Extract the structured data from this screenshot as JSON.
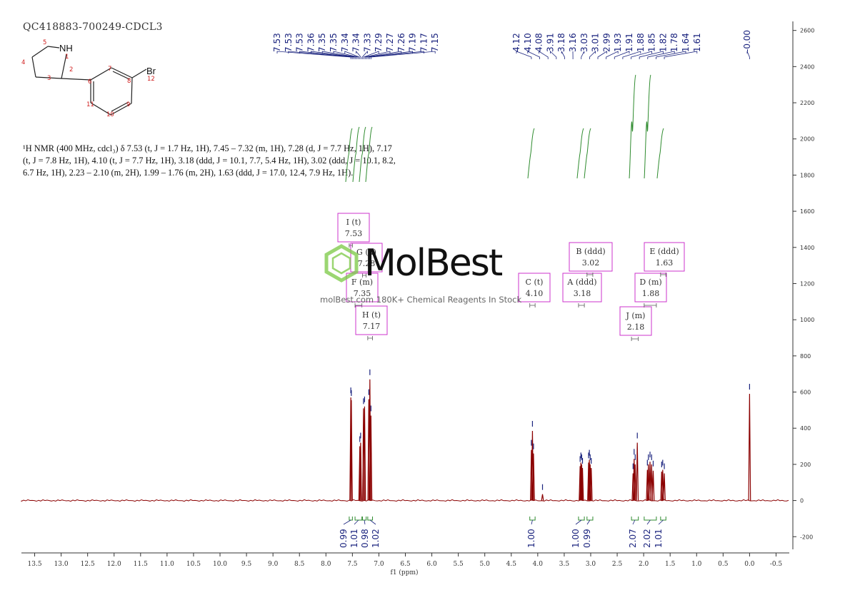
{
  "sample_id": "QC418883-700249-CDCL3",
  "structure": {
    "atoms": [
      {
        "id": "1",
        "label": "1"
      },
      {
        "id": "2",
        "label": "2"
      },
      {
        "id": "3",
        "label": "3"
      },
      {
        "id": "4",
        "label": "4"
      },
      {
        "id": "5",
        "label": "5"
      },
      {
        "id": "6",
        "label": "6"
      },
      {
        "id": "7",
        "label": "7"
      },
      {
        "id": "8",
        "label": "8"
      },
      {
        "id": "9",
        "label": "9"
      },
      {
        "id": "10",
        "label": "10"
      },
      {
        "id": "11",
        "label": "11"
      },
      {
        "id": "12",
        "label": "12"
      }
    ],
    "nh_label": "NH",
    "br_label": "Br"
  },
  "nmr_description": {
    "line1": "¹H NMR (400 MHz, cdcl₃) δ 7.53 (t, J = 1.7 Hz, 1H), 7.45 – 7.32 (m, 1H), 7.28 (d, J = 7.7 Hz, 1H), 7.17",
    "line2": "(t, J = 7.8 Hz, 1H), 4.10 (t, J = 7.7 Hz, 1H), 3.18 (ddd, J = 10.1, 7.7, 5.4 Hz, 1H), 3.02 (ddd, J = 10.1, 8.2,",
    "line3": "6.7 Hz, 1H), 2.23 – 2.10 (m, 2H), 1.99 – 1.76 (m, 2H), 1.63 (ddd, J = 17.0, 12.4, 7.9 Hz, 1H)."
  },
  "watermark": {
    "logo_text": "MolBest",
    "tagline": "molBest.com 180K+ Chemical Reagents In Stock"
  },
  "chart_data": {
    "type": "line",
    "xlabel": "f1 (ppm)",
    "xlim": [
      13.75,
      -0.75
    ],
    "x_reversed": true,
    "ylim": [
      -270,
      2650
    ],
    "x_ticks": [
      "13.5",
      "13.0",
      "12.5",
      "12.0",
      "11.5",
      "11.0",
      "10.5",
      "10.0",
      "9.5",
      "9.0",
      "8.5",
      "8.0",
      "7.5",
      "7.0",
      "6.5",
      "6.0",
      "5.5",
      "5.0",
      "4.5",
      "4.0",
      "3.5",
      "3.0",
      "2.5",
      "2.0",
      "1.5",
      "1.0",
      "0.5",
      "0.0",
      "-0.5"
    ],
    "y_ticks": [
      "-200",
      "0",
      "200",
      "400",
      "600",
      "800",
      "1000",
      "1200",
      "1400",
      "1600",
      "1800",
      "2000",
      "2200",
      "2400",
      "2600"
    ],
    "colors": {
      "spectrum": "#8b0000",
      "peak_label": "#1a237e",
      "integral": "#2e8b2e",
      "multiplet": "#cc33cc",
      "axis": "#333333"
    },
    "spectrum_peaks": [
      {
        "ppm": 7.53,
        "height": 570
      },
      {
        "ppm": 7.52,
        "height": 555
      },
      {
        "ppm": 7.36,
        "height": 300
      },
      {
        "ppm": 7.345,
        "height": 320
      },
      {
        "ppm": 7.29,
        "height": 510
      },
      {
        "ppm": 7.27,
        "height": 520
      },
      {
        "ppm": 7.19,
        "height": 560
      },
      {
        "ppm": 7.17,
        "height": 670
      },
      {
        "ppm": 7.15,
        "height": 470
      },
      {
        "ppm": 4.12,
        "height": 280
      },
      {
        "ppm": 4.1,
        "height": 385
      },
      {
        "ppm": 4.08,
        "height": 260
      },
      {
        "ppm": 3.91,
        "height": 35
      },
      {
        "ppm": 3.2,
        "height": 190
      },
      {
        "ppm": 3.185,
        "height": 210
      },
      {
        "ppm": 3.17,
        "height": 200
      },
      {
        "ppm": 3.155,
        "height": 180
      },
      {
        "ppm": 3.04,
        "height": 210
      },
      {
        "ppm": 3.025,
        "height": 225
      },
      {
        "ppm": 3.01,
        "height": 200
      },
      {
        "ppm": 2.99,
        "height": 180
      },
      {
        "ppm": 2.2,
        "height": 150
      },
      {
        "ppm": 2.18,
        "height": 230
      },
      {
        "ppm": 2.16,
        "height": 200
      },
      {
        "ppm": 2.12,
        "height": 320
      },
      {
        "ppm": 1.93,
        "height": 170
      },
      {
        "ppm": 1.91,
        "height": 200
      },
      {
        "ppm": 1.88,
        "height": 215
      },
      {
        "ppm": 1.85,
        "height": 200
      },
      {
        "ppm": 1.82,
        "height": 165
      },
      {
        "ppm": 1.66,
        "height": 160
      },
      {
        "ppm": 1.64,
        "height": 170
      },
      {
        "ppm": 1.61,
        "height": 150
      },
      {
        "ppm": 0.0,
        "height": 590
      }
    ],
    "peak_labels": {
      "group1": [
        "7.53",
        "7.53",
        "7.53",
        "7.36",
        "7.35",
        "7.35",
        "7.34",
        "7.34",
        "7.33",
        "7.29",
        "7.27",
        "7.26",
        "7.19",
        "7.17",
        "7.15"
      ],
      "group2": [
        "4.12",
        "4.10",
        "4.08",
        "3.91",
        "3.18",
        "3.16",
        "3.03",
        "3.01",
        "2.99",
        "1.93",
        "1.91",
        "1.88",
        "1.85",
        "1.82",
        "1.78",
        "1.64",
        "1.61"
      ],
      "group3": [
        "-0.00"
      ]
    },
    "integrals": [
      {
        "from": 7.56,
        "to": 7.5,
        "value": "0.99"
      },
      {
        "from": 7.45,
        "to": 7.32,
        "value": "1.01"
      },
      {
        "from": 7.31,
        "to": 7.24,
        "value": "0.98"
      },
      {
        "from": 7.21,
        "to": 7.12,
        "value": "1.02"
      },
      {
        "from": 4.15,
        "to": 4.05,
        "value": "1.00"
      },
      {
        "from": 3.23,
        "to": 3.12,
        "value": "1.00"
      },
      {
        "from": 3.07,
        "to": 2.96,
        "value": "0.99"
      },
      {
        "from": 2.23,
        "to": 2.1,
        "value": "2.07"
      },
      {
        "from": 1.99,
        "to": 1.76,
        "value": "2.02"
      },
      {
        "from": 1.68,
        "to": 1.58,
        "value": "1.01"
      }
    ],
    "multiplets": [
      {
        "letter": "I",
        "type": "t",
        "shift": "7.53"
      },
      {
        "letter": "G",
        "type": "d",
        "shift": "7.28"
      },
      {
        "letter": "F",
        "type": "m",
        "shift": "7.35"
      },
      {
        "letter": "H",
        "type": "t",
        "shift": "7.17"
      },
      {
        "letter": "C",
        "type": "t",
        "shift": "4.10"
      },
      {
        "letter": "A",
        "type": "ddd",
        "shift": "3.18"
      },
      {
        "letter": "B",
        "type": "ddd",
        "shift": "3.02"
      },
      {
        "letter": "J",
        "type": "m",
        "shift": "2.18"
      },
      {
        "letter": "D",
        "type": "m",
        "shift": "1.88"
      },
      {
        "letter": "E",
        "type": "ddd",
        "shift": "1.63"
      }
    ]
  }
}
